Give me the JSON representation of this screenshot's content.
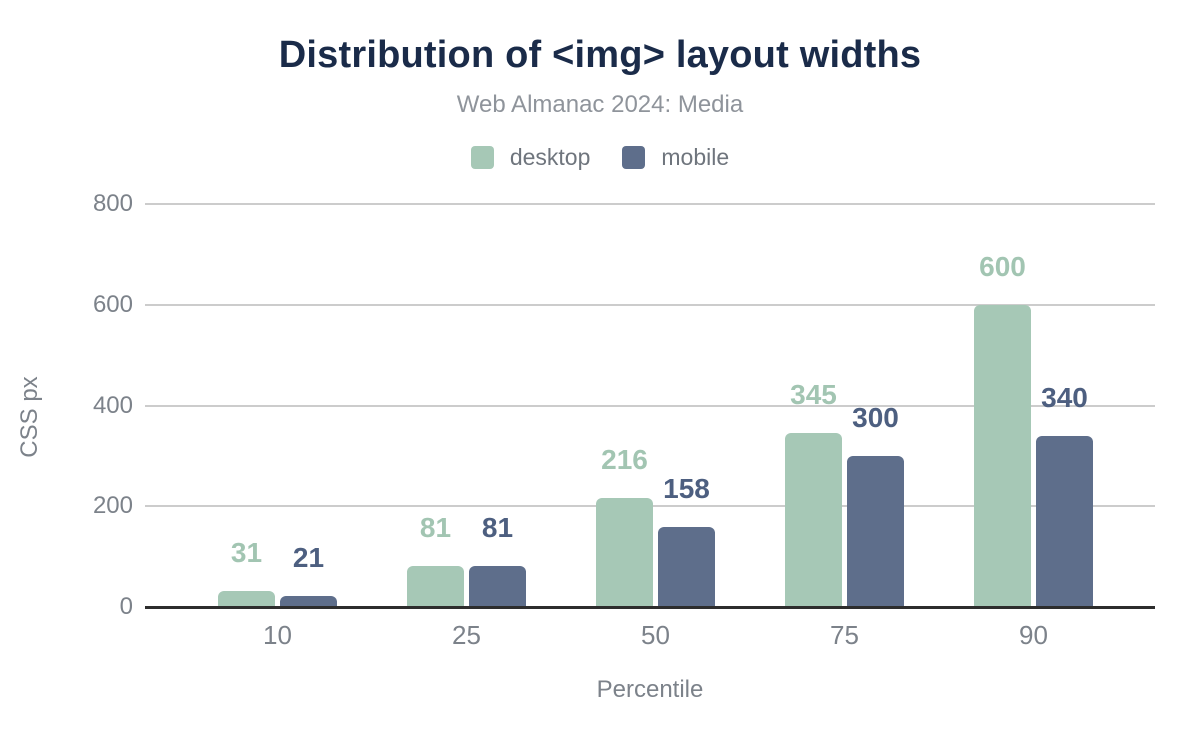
{
  "chart_data": {
    "type": "bar",
    "title": "Distribution of <img> layout widths",
    "subtitle": "Web Almanac 2024: Media",
    "categories": [
      "10",
      "25",
      "50",
      "75",
      "90"
    ],
    "series": [
      {
        "name": "desktop",
        "color": "#a6c8b6",
        "label_color": "#a2c5b2",
        "values": [
          31,
          81,
          216,
          345,
          600
        ]
      },
      {
        "name": "mobile",
        "color": "#5e6e8b",
        "label_color": "#4d5f80",
        "values": [
          21,
          81,
          158,
          300,
          340
        ]
      }
    ],
    "xlabel": "Percentile",
    "ylabel": "CSS px",
    "ylim": [
      0,
      800
    ],
    "yticks": [
      0,
      200,
      400,
      600,
      800
    ],
    "grid": true,
    "legend_position": "top",
    "background": "#ffffff",
    "title_color": "#1a2b49",
    "axis_text_color": "#7c828a",
    "gridline_color": "#cccccc",
    "baseline_color": "#2d2d2d"
  }
}
